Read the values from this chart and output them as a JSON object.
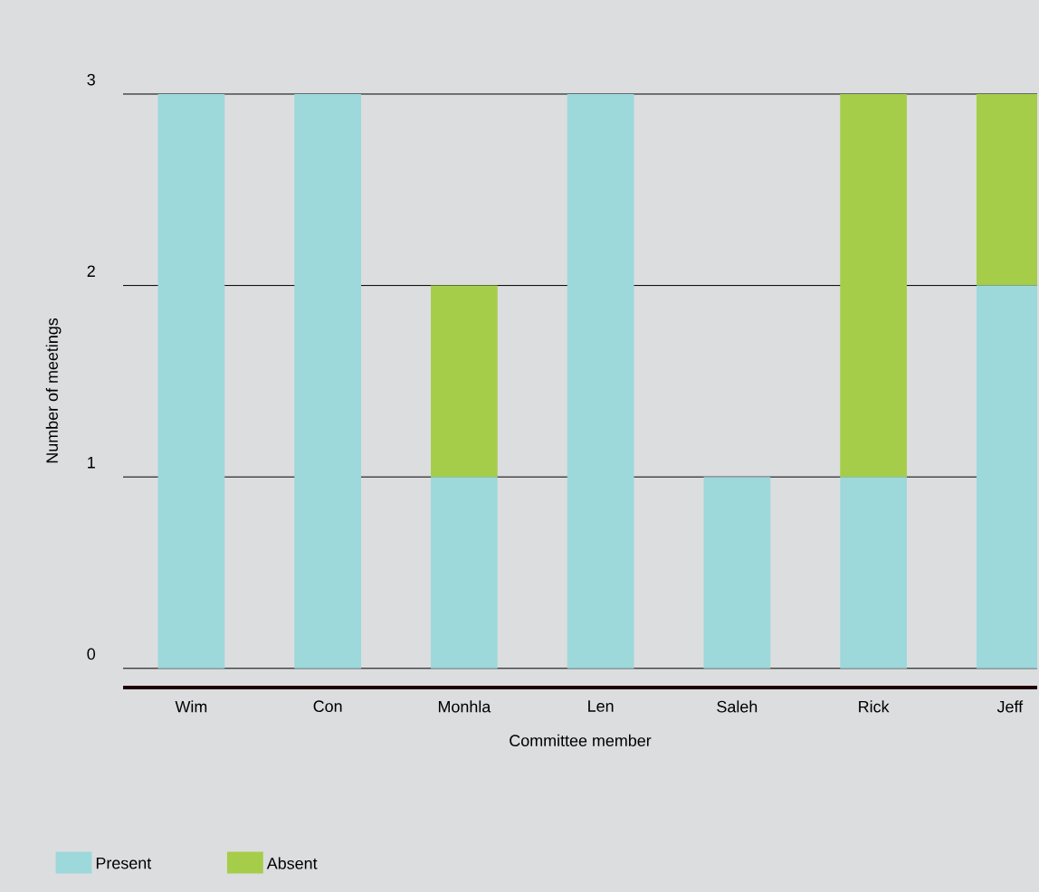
{
  "chart_data": {
    "type": "bar",
    "stacked": true,
    "xlabel": "Committee member",
    "ylabel": "Number of meetings",
    "categories": [
      "Wim",
      "Con",
      "Monhla",
      "Len",
      "Saleh",
      "Rick",
      "Jeff"
    ],
    "series": [
      {
        "name": "Present",
        "color": "#9dd8db",
        "values": [
          3,
          3,
          1,
          3,
          1,
          1,
          2
        ]
      },
      {
        "name": "Absent",
        "color": "#a5cd4a",
        "values": [
          0,
          0,
          1,
          0,
          0,
          2,
          1
        ]
      }
    ],
    "ylim": [
      -0.1,
      3
    ],
    "yticks": [
      0,
      1,
      2,
      3
    ],
    "grid": "y",
    "legend": "bottom left"
  }
}
